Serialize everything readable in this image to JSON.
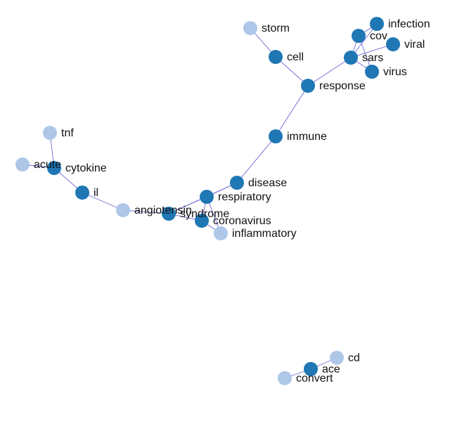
{
  "colors": {
    "primary_node": "#1f77b4",
    "secondary_node": "#aec7e8",
    "edge": "#6a6ad8",
    "label": "#111111"
  },
  "nodes": [
    {
      "id": "storm",
      "label": "storm",
      "group": "secondary"
    },
    {
      "id": "cell",
      "label": "cell",
      "group": "primary"
    },
    {
      "id": "response",
      "label": "response",
      "group": "primary"
    },
    {
      "id": "immune",
      "label": "immune",
      "group": "primary"
    },
    {
      "id": "infection",
      "label": "infection",
      "group": "primary"
    },
    {
      "id": "cov",
      "label": "cov",
      "group": "primary"
    },
    {
      "id": "viral",
      "label": "viral",
      "group": "primary"
    },
    {
      "id": "sars",
      "label": "sars",
      "group": "primary"
    },
    {
      "id": "virus",
      "label": "virus",
      "group": "primary"
    },
    {
      "id": "tnf",
      "label": "tnf",
      "group": "secondary"
    },
    {
      "id": "acute",
      "label": "acute",
      "group": "secondary"
    },
    {
      "id": "cytokine",
      "label": "cytokine",
      "group": "primary"
    },
    {
      "id": "il",
      "label": "il",
      "group": "primary"
    },
    {
      "id": "angiotensin",
      "label": "angiotensin",
      "group": "secondary"
    },
    {
      "id": "syndrome",
      "label": "syndrome",
      "group": "primary"
    },
    {
      "id": "respiratory",
      "label": "respiratory",
      "group": "primary"
    },
    {
      "id": "disease",
      "label": "disease",
      "group": "primary"
    },
    {
      "id": "coronavirus",
      "label": "coronavirus",
      "group": "primary"
    },
    {
      "id": "inflammatory",
      "label": "inflammatory",
      "group": "secondary"
    },
    {
      "id": "cd",
      "label": "cd",
      "group": "secondary"
    },
    {
      "id": "ace",
      "label": "ace",
      "group": "primary"
    },
    {
      "id": "convert",
      "label": "convert",
      "group": "secondary"
    }
  ],
  "edges": [
    {
      "source": "storm",
      "target": "cell"
    },
    {
      "source": "cell",
      "target": "response"
    },
    {
      "source": "response",
      "target": "sars"
    },
    {
      "source": "response",
      "target": "immune"
    },
    {
      "source": "immune",
      "target": "disease"
    },
    {
      "source": "sars",
      "target": "cov"
    },
    {
      "source": "sars",
      "target": "infection"
    },
    {
      "source": "sars",
      "target": "viral"
    },
    {
      "source": "sars",
      "target": "virus"
    },
    {
      "source": "cov",
      "target": "infection"
    },
    {
      "source": "cov",
      "target": "virus"
    },
    {
      "source": "tnf",
      "target": "cytokine"
    },
    {
      "source": "acute",
      "target": "cytokine"
    },
    {
      "source": "cytokine",
      "target": "il"
    },
    {
      "source": "il",
      "target": "angiotensin"
    },
    {
      "source": "angiotensin",
      "target": "syndrome"
    },
    {
      "source": "syndrome",
      "target": "respiratory"
    },
    {
      "source": "syndrome",
      "target": "disease"
    },
    {
      "source": "syndrome",
      "target": "coronavirus"
    },
    {
      "source": "respiratory",
      "target": "disease"
    },
    {
      "source": "respiratory",
      "target": "coronavirus"
    },
    {
      "source": "respiratory",
      "target": "inflammatory"
    },
    {
      "source": "coronavirus",
      "target": "inflammatory"
    },
    {
      "source": "cd",
      "target": "ace"
    },
    {
      "source": "ace",
      "target": "convert"
    }
  ]
}
